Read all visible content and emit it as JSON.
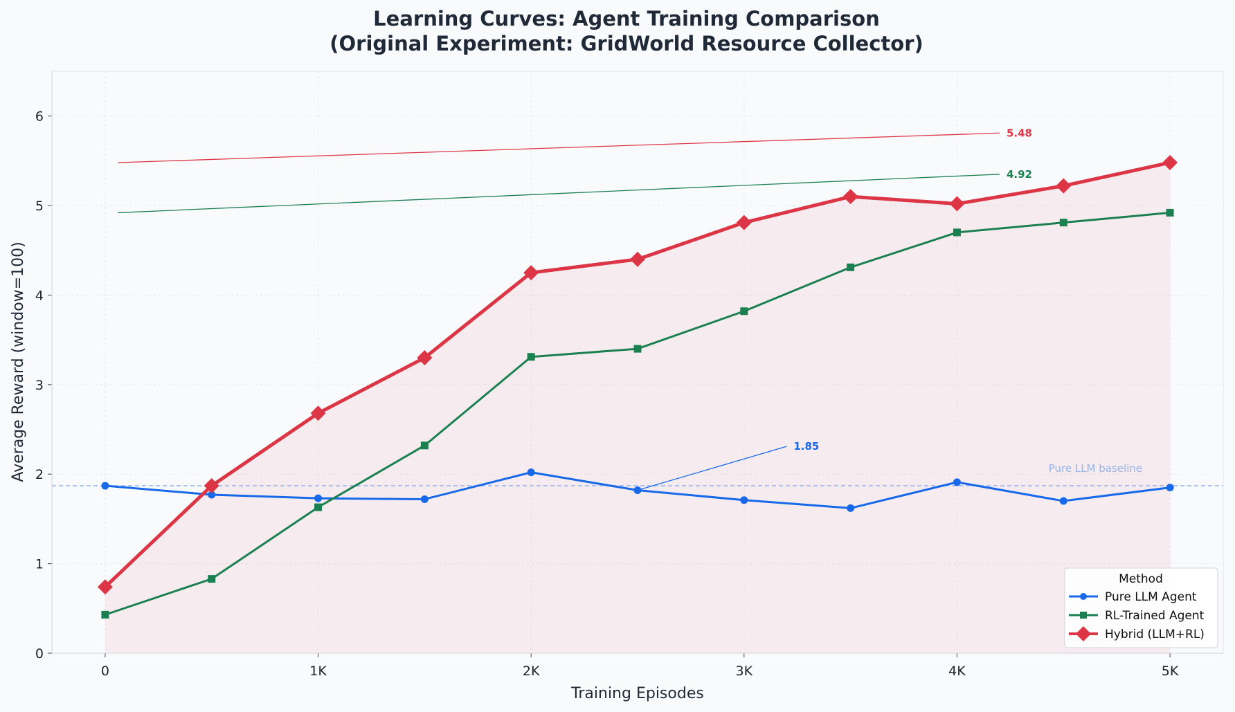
{
  "chart_data": {
    "type": "line",
    "title_line1": "Learning Curves: Agent Training Comparison",
    "title_line2": "(Original Experiment: GridWorld Resource Collector)",
    "xlabel": "Training Episodes",
    "ylabel": "Average Reward (window=100)",
    "x": [
      0,
      500,
      1000,
      1500,
      2000,
      2500,
      3000,
      3500,
      4000,
      4500,
      5000
    ],
    "xlim": [
      -250,
      5250
    ],
    "ylim": [
      0,
      6.5
    ],
    "x_ticks": [
      0,
      1000,
      2000,
      3000,
      4000,
      5000
    ],
    "x_tick_labels": [
      "0",
      "1K",
      "2K",
      "3K",
      "4K",
      "5K"
    ],
    "y_ticks": [
      0,
      1,
      2,
      3,
      4,
      5,
      6
    ],
    "y_tick_labels": [
      "0",
      "1",
      "2",
      "3",
      "4",
      "5",
      "6"
    ],
    "grid": true,
    "series": [
      {
        "name": "Pure LLM Agent",
        "color": "#1769e9",
        "marker": "circle",
        "values": [
          1.87,
          1.77,
          1.73,
          1.72,
          2.02,
          1.82,
          1.71,
          1.62,
          1.91,
          1.7,
          1.85
        ]
      },
      {
        "name": "RL-Trained Agent",
        "color": "#1a8050",
        "marker": "square",
        "values": [
          0.43,
          0.83,
          1.63,
          2.32,
          3.31,
          3.4,
          3.82,
          4.31,
          4.7,
          4.81,
          4.92
        ]
      },
      {
        "name": "Hybrid (LLM+RL)",
        "color": "#dc3545",
        "marker": "diamond",
        "fill_below": true,
        "values": [
          0.74,
          1.87,
          2.68,
          3.3,
          4.25,
          4.4,
          4.81,
          5.1,
          5.02,
          5.22,
          5.48
        ]
      }
    ],
    "baseline": {
      "label": "Pure LLM baseline",
      "value": 1.87,
      "color": "#93b2ee"
    },
    "annotations": [
      {
        "text": "5.48",
        "series": 2,
        "label_pos": [
          4200,
          5.81
        ],
        "from": [
          60,
          5.48
        ],
        "color": "#dc3545"
      },
      {
        "text": "4.92",
        "series": 1,
        "label_pos": [
          4200,
          5.35
        ],
        "from": [
          60,
          4.92
        ],
        "color": "#1a8050"
      },
      {
        "text": "1.85",
        "series": 0,
        "label_pos": [
          3200,
          2.31
        ],
        "from": [
          2500,
          1.82
        ],
        "color": "#1769e9"
      }
    ],
    "legend": {
      "title": "Method",
      "position": "bottom-right"
    }
  }
}
